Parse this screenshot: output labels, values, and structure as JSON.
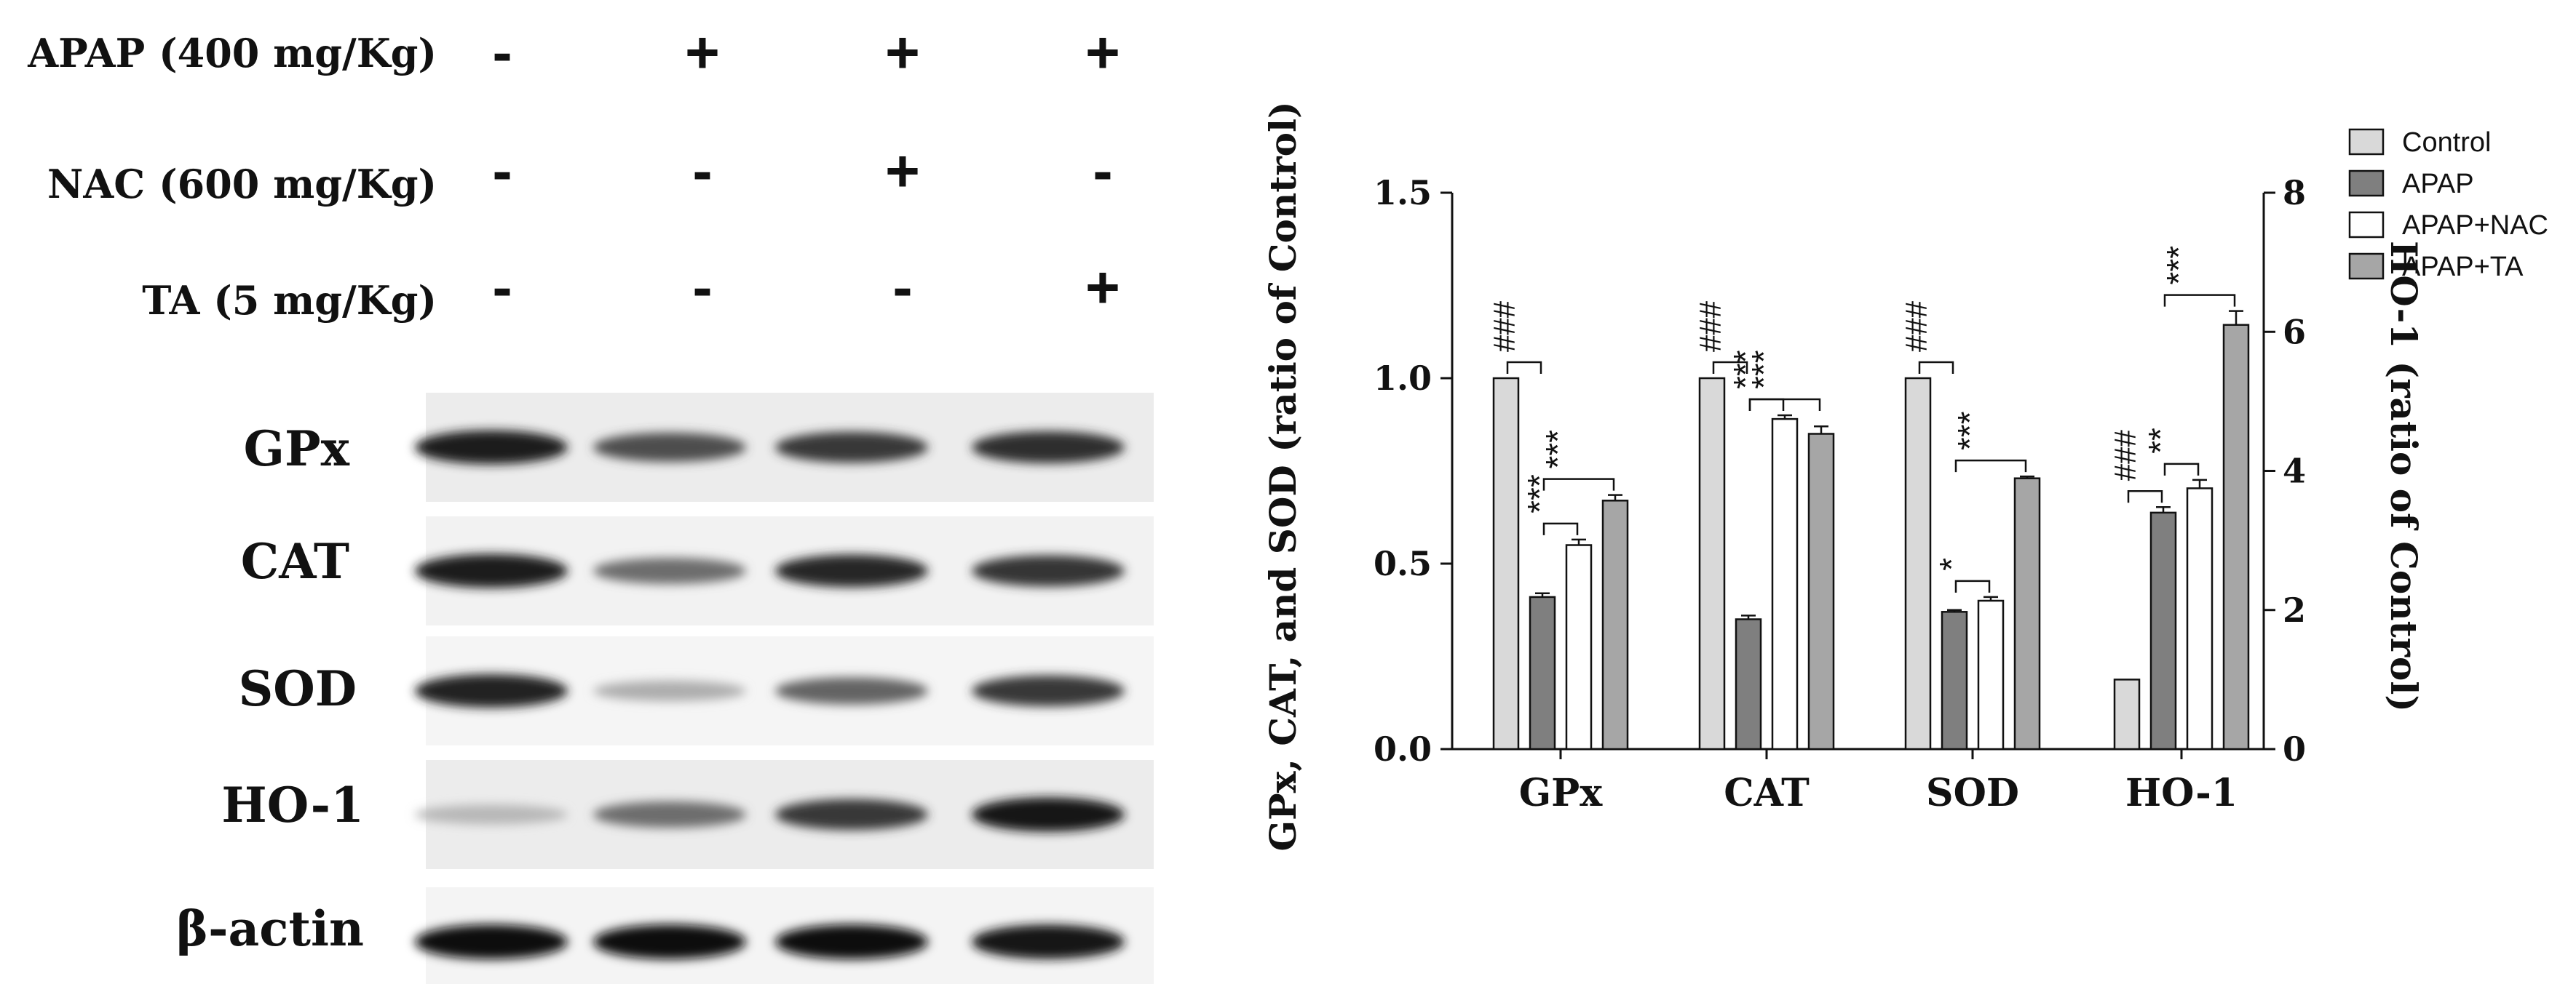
{
  "treatments": [
    {
      "label": "APAP (400 mg/Kg)",
      "signs": [
        "-",
        "+",
        "+",
        "+"
      ]
    },
    {
      "label": "NAC (600 mg/Kg)",
      "signs": [
        "-",
        "-",
        "+",
        "-"
      ]
    },
    {
      "label": "TA (5 mg/Kg)",
      "signs": [
        "-",
        "-",
        "-",
        "+"
      ]
    }
  ],
  "blot": {
    "rows": [
      {
        "label": "GPx",
        "intensity": [
          0.95,
          0.7,
          0.8,
          0.85
        ]
      },
      {
        "label": "CAT",
        "intensity": [
          0.95,
          0.55,
          0.88,
          0.82
        ]
      },
      {
        "label": "SOD",
        "intensity": [
          0.92,
          0.25,
          0.6,
          0.8
        ]
      },
      {
        "label": "HO-1",
        "intensity": [
          0.2,
          0.55,
          0.8,
          0.97
        ]
      },
      {
        "label": "β-actin",
        "intensity": [
          1.0,
          1.0,
          1.0,
          0.98
        ]
      }
    ]
  },
  "chart_data": {
    "type": "bar",
    "categories": [
      "GPx",
      "CAT",
      "SOD",
      "HO-1"
    ],
    "series": [
      {
        "name": "Control",
        "values": [
          1.0,
          1.0,
          1.0,
          1.0
        ],
        "errors": [
          0,
          0,
          0,
          0
        ],
        "color": "#d9d9d9"
      },
      {
        "name": "APAP",
        "values": [
          0.41,
          0.35,
          0.37,
          3.4
        ],
        "errors": [
          0.01,
          0.01,
          0.005,
          0.08
        ],
        "color": "#7f7f7f"
      },
      {
        "name": "APAP+NAC",
        "values": [
          0.55,
          0.89,
          0.4,
          3.75
        ],
        "errors": [
          0.015,
          0.01,
          0.01,
          0.12
        ],
        "color": "#ffffff"
      },
      {
        "name": "APAP+TA",
        "values": [
          0.67,
          0.85,
          0.73,
          6.1
        ],
        "errors": [
          0.015,
          0.02,
          0.005,
          0.2
        ],
        "color": "#a6a6a6"
      }
    ],
    "ylabel": "GPx, CAT, and SOD (ratio of Control)",
    "ylim": [
      0,
      1.5
    ],
    "yticks": [
      "0.0",
      "0.5",
      "1.0",
      "1.5"
    ],
    "y2label": "HO-1 (ratio of Control)",
    "y2lim": [
      0,
      8
    ],
    "y2ticks": [
      "0",
      "2",
      "4",
      "6",
      "8"
    ],
    "secondary_axis_category": "HO-1",
    "legend_position": "top-right",
    "grid": false,
    "significance": [
      {
        "category": "GPx",
        "from": "Control",
        "to": "APAP",
        "marker": "###"
      },
      {
        "category": "GPx",
        "from": "APAP",
        "to": "APAP+NAC",
        "marker": "***"
      },
      {
        "category": "GPx",
        "from": "APAP",
        "to": "APAP+TA",
        "marker": "***"
      },
      {
        "category": "CAT",
        "from": "Control",
        "to": "APAP",
        "marker": "###"
      },
      {
        "category": "CAT",
        "from": "APAP",
        "to": "APAP+NAC",
        "marker": "***"
      },
      {
        "category": "CAT",
        "from": "APAP",
        "to": "APAP+TA",
        "marker": "***"
      },
      {
        "category": "SOD",
        "from": "Control",
        "to": "APAP",
        "marker": "###"
      },
      {
        "category": "SOD",
        "from": "APAP",
        "to": "APAP+NAC",
        "marker": "*"
      },
      {
        "category": "SOD",
        "from": "APAP",
        "to": "APAP+TA",
        "marker": "***"
      },
      {
        "category": "HO-1",
        "from": "Control",
        "to": "APAP",
        "marker": "###"
      },
      {
        "category": "HO-1",
        "from": "APAP",
        "to": "APAP+NAC",
        "marker": "**"
      },
      {
        "category": "HO-1",
        "from": "APAP",
        "to": "APAP+TA",
        "marker": "***"
      }
    ]
  }
}
